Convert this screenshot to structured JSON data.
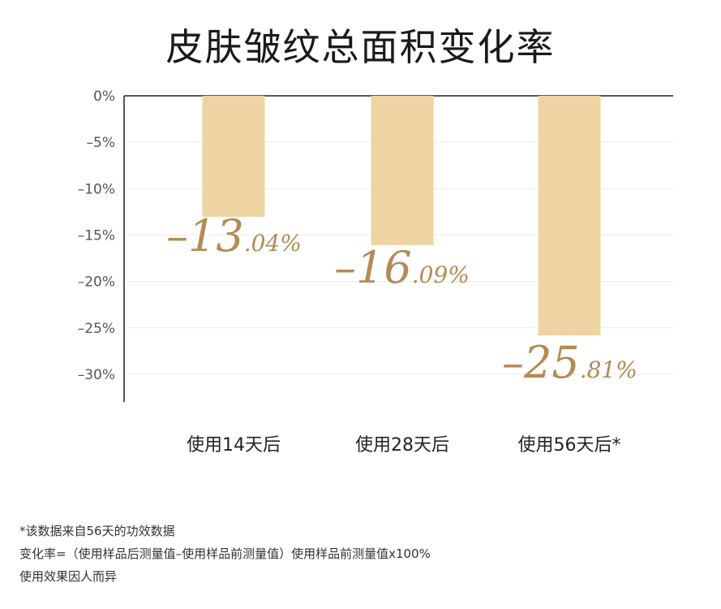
{
  "chart_data": {
    "type": "bar",
    "title": "皮肤皱纹总面积变化率",
    "categories": [
      "使用14天后",
      "使用28天后",
      "使用56天后*"
    ],
    "series": [
      {
        "values": [
          -13.04,
          -16.09,
          -25.81
        ]
      }
    ],
    "value_labels": {
      "integers": [
        "–13",
        "–16",
        "–25"
      ],
      "decimals": [
        ".04%",
        ".09%",
        ".81%"
      ]
    },
    "y_ticks": [
      0,
      -5,
      -10,
      -15,
      -20,
      -25,
      -30
    ],
    "y_tick_labels": [
      "0%",
      "–5%",
      "–10%",
      "–15%",
      "–20%",
      "–25%",
      "–30%"
    ],
    "ylim": [
      -33,
      0
    ],
    "grid": true,
    "bar_color": "#efd4a3",
    "label_color": "#b48a55",
    "xlabel": "",
    "ylabel": ""
  },
  "footnotes": [
    "*该数据来自56天的功效数据",
    "变化率=（使用样品后测量值–使用样品前测量值）使用样品前测量值x100%",
    "使用效果因人而异"
  ]
}
